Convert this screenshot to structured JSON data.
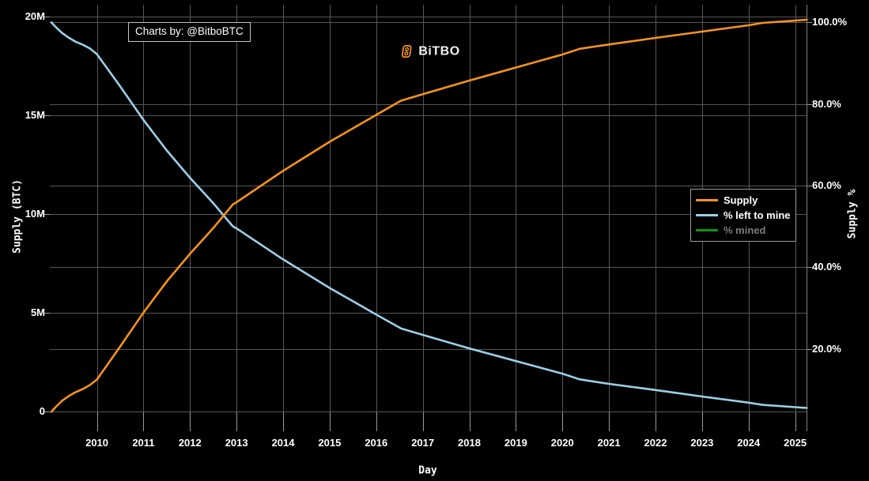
{
  "watermark": {
    "text": "Charts by: @BitboBTC"
  },
  "logo": {
    "text": "BiTBO",
    "icon": "bitbo-b-icon",
    "icon_color": "#f7931a"
  },
  "colors": {
    "background": "#000000",
    "grid": "#575757",
    "tick": "#999999",
    "axis_line": "#808080",
    "text": "#ffffff",
    "disabled_text": "#7a7a7a",
    "supply_orange": "#f7931a",
    "left_to_mine_blue": "#9ccfe8",
    "mined_green": "#0b970b"
  },
  "chart_data": {
    "type": "line",
    "title": "",
    "xlabel": "Day",
    "ylabel_left": "Supply (BTC)",
    "ylabel_right": "Supply %",
    "grid": true,
    "legend_position": "right-middle",
    "x_axis": {
      "unit": "year",
      "range": [
        2009.0,
        2025.3
      ],
      "ticks": [
        2010,
        2011,
        2012,
        2013,
        2014,
        2015,
        2016,
        2017,
        2018,
        2019,
        2020,
        2021,
        2022,
        2023,
        2024,
        2025
      ]
    },
    "left_axis": {
      "unit": "million BTC",
      "range": [
        0,
        20
      ],
      "ticks": [
        {
          "value": 0,
          "label": "0"
        },
        {
          "value": 5,
          "label": "5M"
        },
        {
          "value": 10,
          "label": "10M"
        },
        {
          "value": 15,
          "label": "15M"
        },
        {
          "value": 20,
          "label": "20M"
        }
      ]
    },
    "right_axis": {
      "unit": "percent",
      "range": [
        0,
        100
      ],
      "ticks": [
        {
          "value": 20,
          "label": "20.0%"
        },
        {
          "value": 40,
          "label": "40.0%"
        },
        {
          "value": 60,
          "label": "60.0%"
        },
        {
          "value": 80,
          "label": "80.0%"
        },
        {
          "value": 100,
          "label": "100.0%"
        }
      ]
    },
    "series": [
      {
        "name": "Supply",
        "axis": "left",
        "color": "#f7931a",
        "visible": true,
        "points": [
          [
            2009.02,
            0
          ],
          [
            2009.12,
            0.25
          ],
          [
            2009.25,
            0.55
          ],
          [
            2009.4,
            0.8
          ],
          [
            2009.55,
            1.0
          ],
          [
            2009.7,
            1.15
          ],
          [
            2009.85,
            1.35
          ],
          [
            2010,
            1.63
          ],
          [
            2010.5,
            3.3
          ],
          [
            2011,
            5.02
          ],
          [
            2011.5,
            6.6
          ],
          [
            2012,
            8.0
          ],
          [
            2012.5,
            9.3
          ],
          [
            2012.92,
            10.5
          ],
          [
            2013,
            10.61
          ],
          [
            2014,
            12.2
          ],
          [
            2015,
            13.67
          ],
          [
            2016,
            15.03
          ],
          [
            2016.53,
            15.75
          ],
          [
            2017,
            16.08
          ],
          [
            2018,
            16.77
          ],
          [
            2019,
            17.43
          ],
          [
            2020,
            18.09
          ],
          [
            2020.37,
            18.38
          ],
          [
            2021,
            18.6
          ],
          [
            2022,
            18.93
          ],
          [
            2023,
            19.25
          ],
          [
            2024,
            19.57
          ],
          [
            2024.3,
            19.69
          ],
          [
            2025,
            19.81
          ],
          [
            2025.25,
            19.85
          ]
        ]
      },
      {
        "name": "% left to mine",
        "axis": "right",
        "color": "#9ccfe8",
        "visible": true,
        "points": [
          [
            2009.02,
            100
          ],
          [
            2009.12,
            98.8
          ],
          [
            2009.25,
            97.4
          ],
          [
            2009.4,
            96.2
          ],
          [
            2009.55,
            95.2
          ],
          [
            2009.7,
            94.5
          ],
          [
            2009.85,
            93.6
          ],
          [
            2010,
            92.2
          ],
          [
            2010.5,
            84.3
          ],
          [
            2011,
            76.1
          ],
          [
            2011.5,
            68.6
          ],
          [
            2012,
            61.9
          ],
          [
            2012.5,
            55.7
          ],
          [
            2012.92,
            50.0
          ],
          [
            2013,
            49.5
          ],
          [
            2014,
            41.9
          ],
          [
            2015,
            34.9
          ],
          [
            2016,
            28.4
          ],
          [
            2016.53,
            25.0
          ],
          [
            2017,
            23.4
          ],
          [
            2018,
            20.1
          ],
          [
            2019,
            17.0
          ],
          [
            2020,
            13.9
          ],
          [
            2020.37,
            12.5
          ],
          [
            2021,
            11.4
          ],
          [
            2022,
            9.9
          ],
          [
            2023,
            8.3
          ],
          [
            2024,
            6.8
          ],
          [
            2024.3,
            6.25
          ],
          [
            2025,
            5.7
          ],
          [
            2025.25,
            5.5
          ]
        ]
      },
      {
        "name": "% mined",
        "axis": "right",
        "color": "#0b970b",
        "visible": false,
        "points": []
      }
    ]
  }
}
